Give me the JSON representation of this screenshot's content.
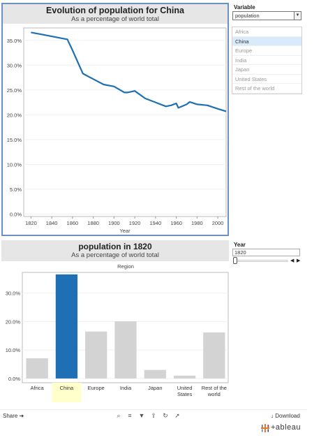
{
  "line_chart": {
    "title": "Evolution of population for China",
    "subtitle": "As a percentage of world total"
  },
  "bar_chart": {
    "title": "population in 1820",
    "subtitle": "As a percentage of world total",
    "region_header": "Region"
  },
  "controls": {
    "variable_label": "Variable",
    "variable_value": "population",
    "legend_items": [
      "Africa",
      "China",
      "Europe",
      "India",
      "Japan",
      "United States",
      "Rest of the world"
    ],
    "selected_legend": "China",
    "year_label": "Year",
    "year_value": "1820"
  },
  "footer": {
    "share": "Share",
    "download": "Download",
    "logo": "+ableau"
  },
  "colors": {
    "accent": "#1f6fb4",
    "line": "#1f6fb4",
    "bar_default": "#d3d3d3",
    "highlight": "#ffffcc"
  },
  "chart_data": [
    {
      "type": "line",
      "xlabel": "Year",
      "ylabel": "",
      "xlim": [
        1813,
        2008
      ],
      "ylim": [
        -0.5,
        37.5
      ],
      "x_ticks": [
        1820,
        1840,
        1860,
        1880,
        1900,
        1920,
        1940,
        1960,
        1980,
        2000
      ],
      "y_ticks": [
        "0.0%",
        "5.0%",
        "10.0%",
        "15.0%",
        "20.0%",
        "25.0%",
        "30.0%",
        "35.0%"
      ],
      "y_tick_values": [
        0,
        5,
        10,
        15,
        20,
        25,
        30,
        35
      ],
      "series": [
        {
          "x": [
            1820,
            1830,
            1840,
            1850,
            1855,
            1860,
            1870,
            1880,
            1890,
            1900,
            1910,
            1913,
            1920,
            1930,
            1940,
            1950,
            1955,
            1960,
            1962,
            1970,
            1973,
            1980,
            1990,
            2000,
            2008
          ],
          "y": [
            36.6,
            36.2,
            35.8,
            35.4,
            35.2,
            33.0,
            28.3,
            27.2,
            26.1,
            25.7,
            24.5,
            24.5,
            24.8,
            23.3,
            22.5,
            21.7,
            21.9,
            22.3,
            21.4,
            22.1,
            22.6,
            22.1,
            21.9,
            21.2,
            20.7
          ]
        }
      ]
    },
    {
      "type": "bar",
      "categories": [
        "Africa",
        "China",
        "Europe",
        "India",
        "Japan",
        "United States",
        "Rest of the world"
      ],
      "values": [
        7.1,
        36.6,
        16.5,
        20.1,
        3.0,
        1.0,
        16.2
      ],
      "ylim": [
        -1.5,
        37.3
      ],
      "y_ticks": [
        "0.0%",
        "10.0%",
        "20.0%",
        "30.0%"
      ],
      "y_tick_values": [
        0,
        10,
        20,
        30
      ],
      "highlight": "China"
    }
  ]
}
